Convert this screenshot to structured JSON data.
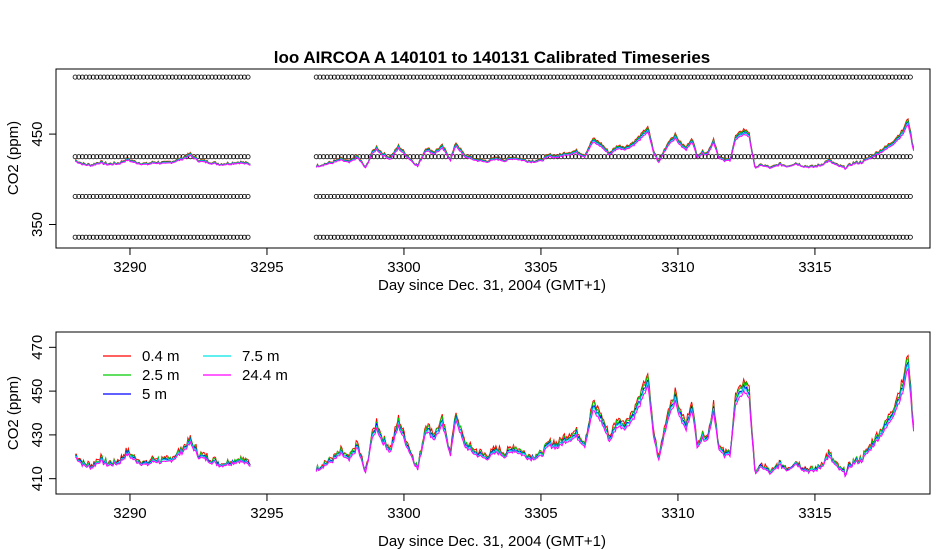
{
  "chart_data": [
    {
      "type": "scatter",
      "title": "loo   AIRCOA  A    140101  to  140131   Calibrated Timeseries",
      "xlabel": "Day since Dec. 31, 2004 (GMT+1)",
      "ylabel": "CO2 (ppm)",
      "xlim": [
        3287.3,
        3319.2
      ],
      "ylim": [
        324,
        522
      ],
      "x_ticks": [
        3290,
        3295,
        3300,
        3305,
        3310,
        3315
      ],
      "x_tick_labels": [
        "3290",
        "3295",
        "3300",
        "3305",
        "3310",
        "3315"
      ],
      "y_ticks": [
        350,
        450
      ],
      "y_tick_labels": [
        "350",
        "450"
      ],
      "gap": [
        3294.4,
        3296.8
      ],
      "segments": [
        [
          3288.0,
          3294.4
        ],
        [
          3296.8,
          3318.6
        ]
      ],
      "calibration_levels": [
        336,
        381,
        425,
        513
      ],
      "series_color": "#ff00ff",
      "series": [
        {
          "name": "24.4 m",
          "values": [
            [
              3288.0,
              420
            ],
            [
              3288.3,
              416
            ],
            [
              3288.6,
              415
            ],
            [
              3288.9,
              418
            ],
            [
              3289.2,
              416
            ],
            [
              3289.6,
              417
            ],
            [
              3289.9,
              421
            ],
            [
              3290.2,
              418
            ],
            [
              3290.6,
              416
            ],
            [
              3290.9,
              418
            ],
            [
              3291.3,
              417
            ],
            [
              3291.6,
              419
            ],
            [
              3291.9,
              422
            ],
            [
              3292.2,
              426
            ],
            [
              3292.5,
              420
            ],
            [
              3292.9,
              418
            ],
            [
              3293.3,
              416
            ],
            [
              3293.7,
              417
            ],
            [
              3294.0,
              418
            ],
            [
              3294.4,
              416
            ],
            [
              3296.8,
              414
            ],
            [
              3297.1,
              416
            ],
            [
              3297.4,
              418
            ],
            [
              3297.7,
              421
            ],
            [
              3298.0,
              418
            ],
            [
              3298.3,
              424
            ],
            [
              3298.6,
              412
            ],
            [
              3298.8,
              426
            ],
            [
              3299.0,
              433
            ],
            [
              3299.2,
              427
            ],
            [
              3299.5,
              422
            ],
            [
              3299.8,
              434
            ],
            [
              3300.1,
              425
            ],
            [
              3300.5,
              414
            ],
            [
              3300.8,
              432
            ],
            [
              3301.1,
              428
            ],
            [
              3301.4,
              434
            ],
            [
              3301.7,
              421
            ],
            [
              3301.9,
              437
            ],
            [
              3302.2,
              425
            ],
            [
              3302.6,
              421
            ],
            [
              3303.0,
              419
            ],
            [
              3303.4,
              422
            ],
            [
              3303.7,
              420
            ],
            [
              3304.0,
              423
            ],
            [
              3304.3,
              421
            ],
            [
              3304.6,
              419
            ],
            [
              3305.0,
              420
            ],
            [
              3305.3,
              425
            ],
            [
              3305.6,
              424
            ],
            [
              3305.9,
              427
            ],
            [
              3306.3,
              429
            ],
            [
              3306.6,
              425
            ],
            [
              3306.9,
              441
            ],
            [
              3307.2,
              436
            ],
            [
              3307.5,
              427
            ],
            [
              3307.8,
              434
            ],
            [
              3308.1,
              433
            ],
            [
              3308.4,
              438
            ],
            [
              3308.7,
              446
            ],
            [
              3308.9,
              453
            ],
            [
              3309.1,
              430
            ],
            [
              3309.3,
              418
            ],
            [
              3309.5,
              430
            ],
            [
              3309.7,
              440
            ],
            [
              3309.9,
              445
            ],
            [
              3310.1,
              437
            ],
            [
              3310.3,
              432
            ],
            [
              3310.5,
              442
            ],
            [
              3310.7,
              425
            ],
            [
              3310.9,
              428
            ],
            [
              3311.1,
              428
            ],
            [
              3311.3,
              441
            ],
            [
              3311.5,
              423
            ],
            [
              3311.7,
              420
            ],
            [
              3311.9,
              421
            ],
            [
              3312.1,
              443
            ],
            [
              3312.4,
              450
            ],
            [
              3312.6,
              447
            ],
            [
              3312.8,
              413
            ],
            [
              3313.1,
              415
            ],
            [
              3313.4,
              412
            ],
            [
              3313.7,
              416
            ],
            [
              3314.0,
              414
            ],
            [
              3314.3,
              417
            ],
            [
              3314.6,
              414
            ],
            [
              3314.9,
              413
            ],
            [
              3315.2,
              415
            ],
            [
              3315.5,
              420
            ],
            [
              3315.8,
              415
            ],
            [
              3316.1,
              412
            ],
            [
              3316.4,
              417
            ],
            [
              3316.7,
              418
            ],
            [
              3317.0,
              423
            ],
            [
              3317.3,
              428
            ],
            [
              3317.6,
              433
            ],
            [
              3317.9,
              440
            ],
            [
              3318.2,
              449
            ],
            [
              3318.4,
              461
            ],
            [
              3318.6,
              431
            ]
          ]
        }
      ]
    },
    {
      "type": "line",
      "title": "",
      "xlabel": "Day since Dec. 31, 2004 (GMT+1)",
      "ylabel": "CO2 (ppm)",
      "xlim": [
        3287.3,
        3319.2
      ],
      "ylim": [
        403,
        477
      ],
      "x_ticks": [
        3290,
        3295,
        3300,
        3305,
        3310,
        3315
      ],
      "x_tick_labels": [
        "3290",
        "3295",
        "3300",
        "3305",
        "3310",
        "3315"
      ],
      "y_ticks": [
        410,
        430,
        450,
        470
      ],
      "y_tick_labels": [
        "410",
        "430",
        "450",
        "470"
      ],
      "legend": {
        "position": "top-left"
      },
      "segments": [
        [
          3288.0,
          3294.4
        ],
        [
          3296.8,
          3318.6
        ]
      ],
      "base_series": [
        [
          3288.0,
          420
        ],
        [
          3288.3,
          416
        ],
        [
          3288.6,
          415
        ],
        [
          3288.9,
          418
        ],
        [
          3289.2,
          416
        ],
        [
          3289.6,
          417
        ],
        [
          3289.9,
          421
        ],
        [
          3290.2,
          418
        ],
        [
          3290.6,
          416
        ],
        [
          3290.9,
          418
        ],
        [
          3291.3,
          417
        ],
        [
          3291.6,
          419
        ],
        [
          3291.9,
          422
        ],
        [
          3292.2,
          426
        ],
        [
          3292.5,
          420
        ],
        [
          3292.9,
          418
        ],
        [
          3293.3,
          416
        ],
        [
          3293.7,
          417
        ],
        [
          3294.0,
          418
        ],
        [
          3294.4,
          416
        ],
        [
          3296.8,
          414
        ],
        [
          3297.1,
          416
        ],
        [
          3297.4,
          418
        ],
        [
          3297.7,
          421
        ],
        [
          3298.0,
          418
        ],
        [
          3298.3,
          424
        ],
        [
          3298.6,
          412
        ],
        [
          3298.8,
          426
        ],
        [
          3299.0,
          433
        ],
        [
          3299.2,
          427
        ],
        [
          3299.5,
          422
        ],
        [
          3299.8,
          434
        ],
        [
          3300.1,
          425
        ],
        [
          3300.5,
          414
        ],
        [
          3300.8,
          432
        ],
        [
          3301.1,
          428
        ],
        [
          3301.4,
          434
        ],
        [
          3301.7,
          421
        ],
        [
          3301.9,
          437
        ],
        [
          3302.2,
          425
        ],
        [
          3302.6,
          421
        ],
        [
          3303.0,
          419
        ],
        [
          3303.4,
          422
        ],
        [
          3303.7,
          420
        ],
        [
          3304.0,
          423
        ],
        [
          3304.3,
          421
        ],
        [
          3304.6,
          419
        ],
        [
          3305.0,
          420
        ],
        [
          3305.3,
          425
        ],
        [
          3305.6,
          424
        ],
        [
          3305.9,
          427
        ],
        [
          3306.3,
          429
        ],
        [
          3306.6,
          425
        ],
        [
          3306.9,
          441
        ],
        [
          3307.2,
          436
        ],
        [
          3307.5,
          427
        ],
        [
          3307.8,
          434
        ],
        [
          3308.1,
          433
        ],
        [
          3308.4,
          438
        ],
        [
          3308.7,
          446
        ],
        [
          3308.9,
          453
        ],
        [
          3309.1,
          430
        ],
        [
          3309.3,
          418
        ],
        [
          3309.5,
          430
        ],
        [
          3309.7,
          440
        ],
        [
          3309.9,
          445
        ],
        [
          3310.1,
          437
        ],
        [
          3310.3,
          432
        ],
        [
          3310.5,
          442
        ],
        [
          3310.7,
          425
        ],
        [
          3310.9,
          428
        ],
        [
          3311.1,
          428
        ],
        [
          3311.3,
          441
        ],
        [
          3311.5,
          423
        ],
        [
          3311.7,
          420
        ],
        [
          3311.9,
          421
        ],
        [
          3312.1,
          443
        ],
        [
          3312.4,
          450
        ],
        [
          3312.6,
          447
        ],
        [
          3312.8,
          413
        ],
        [
          3313.1,
          415
        ],
        [
          3313.4,
          412
        ],
        [
          3313.7,
          416
        ],
        [
          3314.0,
          414
        ],
        [
          3314.3,
          417
        ],
        [
          3314.6,
          414
        ],
        [
          3314.9,
          413
        ],
        [
          3315.2,
          415
        ],
        [
          3315.5,
          420
        ],
        [
          3315.8,
          415
        ],
        [
          3316.1,
          412
        ],
        [
          3316.4,
          417
        ],
        [
          3316.7,
          418
        ],
        [
          3317.0,
          423
        ],
        [
          3317.3,
          428
        ],
        [
          3317.6,
          433
        ],
        [
          3317.9,
          440
        ],
        [
          3318.2,
          449
        ],
        [
          3318.4,
          461
        ],
        [
          3318.6,
          431
        ]
      ],
      "series": [
        {
          "name": "0.4 m",
          "color": "#ff0000",
          "offset_scale": 1.0
        },
        {
          "name": "2.5 m",
          "color": "#00cc00",
          "offset_scale": 0.75
        },
        {
          "name": "5 m",
          "color": "#0000ff",
          "offset_scale": 0.45
        },
        {
          "name": "7.5 m",
          "color": "#00e5e5",
          "offset_scale": 0.3
        },
        {
          "name": "24.4 m",
          "color": "#ff00ff",
          "offset_scale": 0.0
        }
      ]
    }
  ]
}
